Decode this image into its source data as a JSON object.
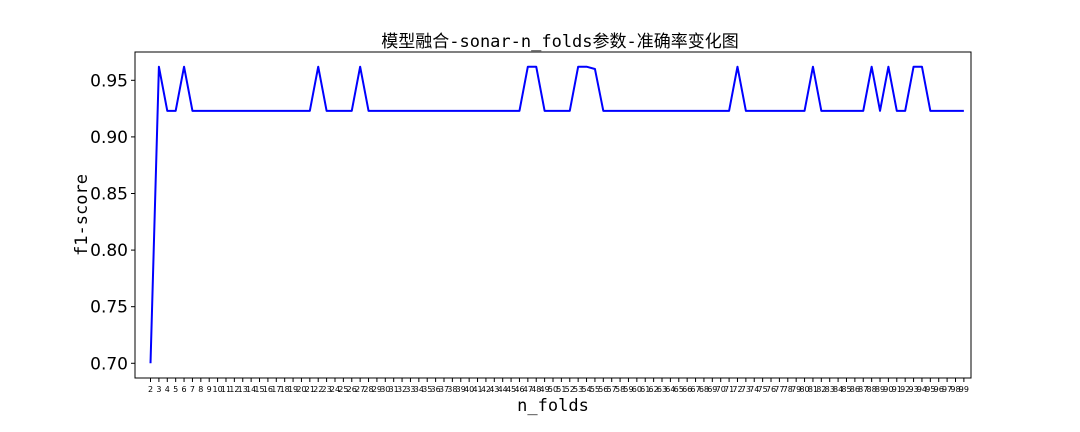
{
  "chart_data": {
    "type": "line",
    "title": "模型融合-sonar-n_folds参数-准确率变化图",
    "xlabel": "n_folds",
    "ylabel": "f1-score",
    "x": [
      2,
      3,
      4,
      5,
      6,
      7,
      8,
      9,
      10,
      11,
      12,
      13,
      14,
      15,
      16,
      17,
      18,
      19,
      20,
      21,
      22,
      23,
      24,
      25,
      26,
      27,
      28,
      29,
      30,
      31,
      32,
      33,
      34,
      35,
      36,
      37,
      38,
      39,
      40,
      41,
      42,
      43,
      44,
      45,
      46,
      47,
      48,
      49,
      50,
      51,
      52,
      53,
      54,
      55,
      56,
      57,
      58,
      59,
      60,
      61,
      62,
      63,
      64,
      65,
      66,
      67,
      68,
      69,
      70,
      71,
      72,
      73,
      74,
      75,
      76,
      77,
      78,
      79,
      80,
      81,
      82,
      83,
      84,
      85,
      86,
      87,
      88,
      89,
      90,
      91,
      92,
      93,
      94,
      95,
      96,
      97,
      98,
      99
    ],
    "series": [
      {
        "color": "#0000ff",
        "values": [
          0.7,
          0.962,
          0.923,
          0.923,
          0.962,
          0.923,
          0.923,
          0.923,
          0.923,
          0.923,
          0.923,
          0.923,
          0.923,
          0.923,
          0.923,
          0.923,
          0.923,
          0.923,
          0.923,
          0.923,
          0.962,
          0.923,
          0.923,
          0.923,
          0.923,
          0.962,
          0.923,
          0.923,
          0.923,
          0.923,
          0.923,
          0.923,
          0.923,
          0.923,
          0.923,
          0.923,
          0.923,
          0.923,
          0.923,
          0.923,
          0.923,
          0.923,
          0.923,
          0.923,
          0.923,
          0.962,
          0.962,
          0.923,
          0.923,
          0.923,
          0.923,
          0.962,
          0.962,
          0.96,
          0.923,
          0.923,
          0.923,
          0.923,
          0.923,
          0.923,
          0.923,
          0.923,
          0.923,
          0.923,
          0.923,
          0.923,
          0.923,
          0.923,
          0.923,
          0.923,
          0.962,
          0.923,
          0.923,
          0.923,
          0.923,
          0.923,
          0.923,
          0.923,
          0.923,
          0.962,
          0.923,
          0.923,
          0.923,
          0.923,
          0.923,
          0.923,
          0.962,
          0.923,
          0.962,
          0.923,
          0.923,
          0.962,
          0.962,
          0.923,
          0.923,
          0.923,
          0.923,
          0.923
        ]
      }
    ],
    "yticks": [
      "0.70",
      "0.75",
      "0.80",
      "0.85",
      "0.90",
      "0.95"
    ],
    "ylim": [
      0.687,
      0.975
    ],
    "xlim": [
      0.15,
      99.85
    ],
    "grid": false,
    "legend": "none"
  }
}
